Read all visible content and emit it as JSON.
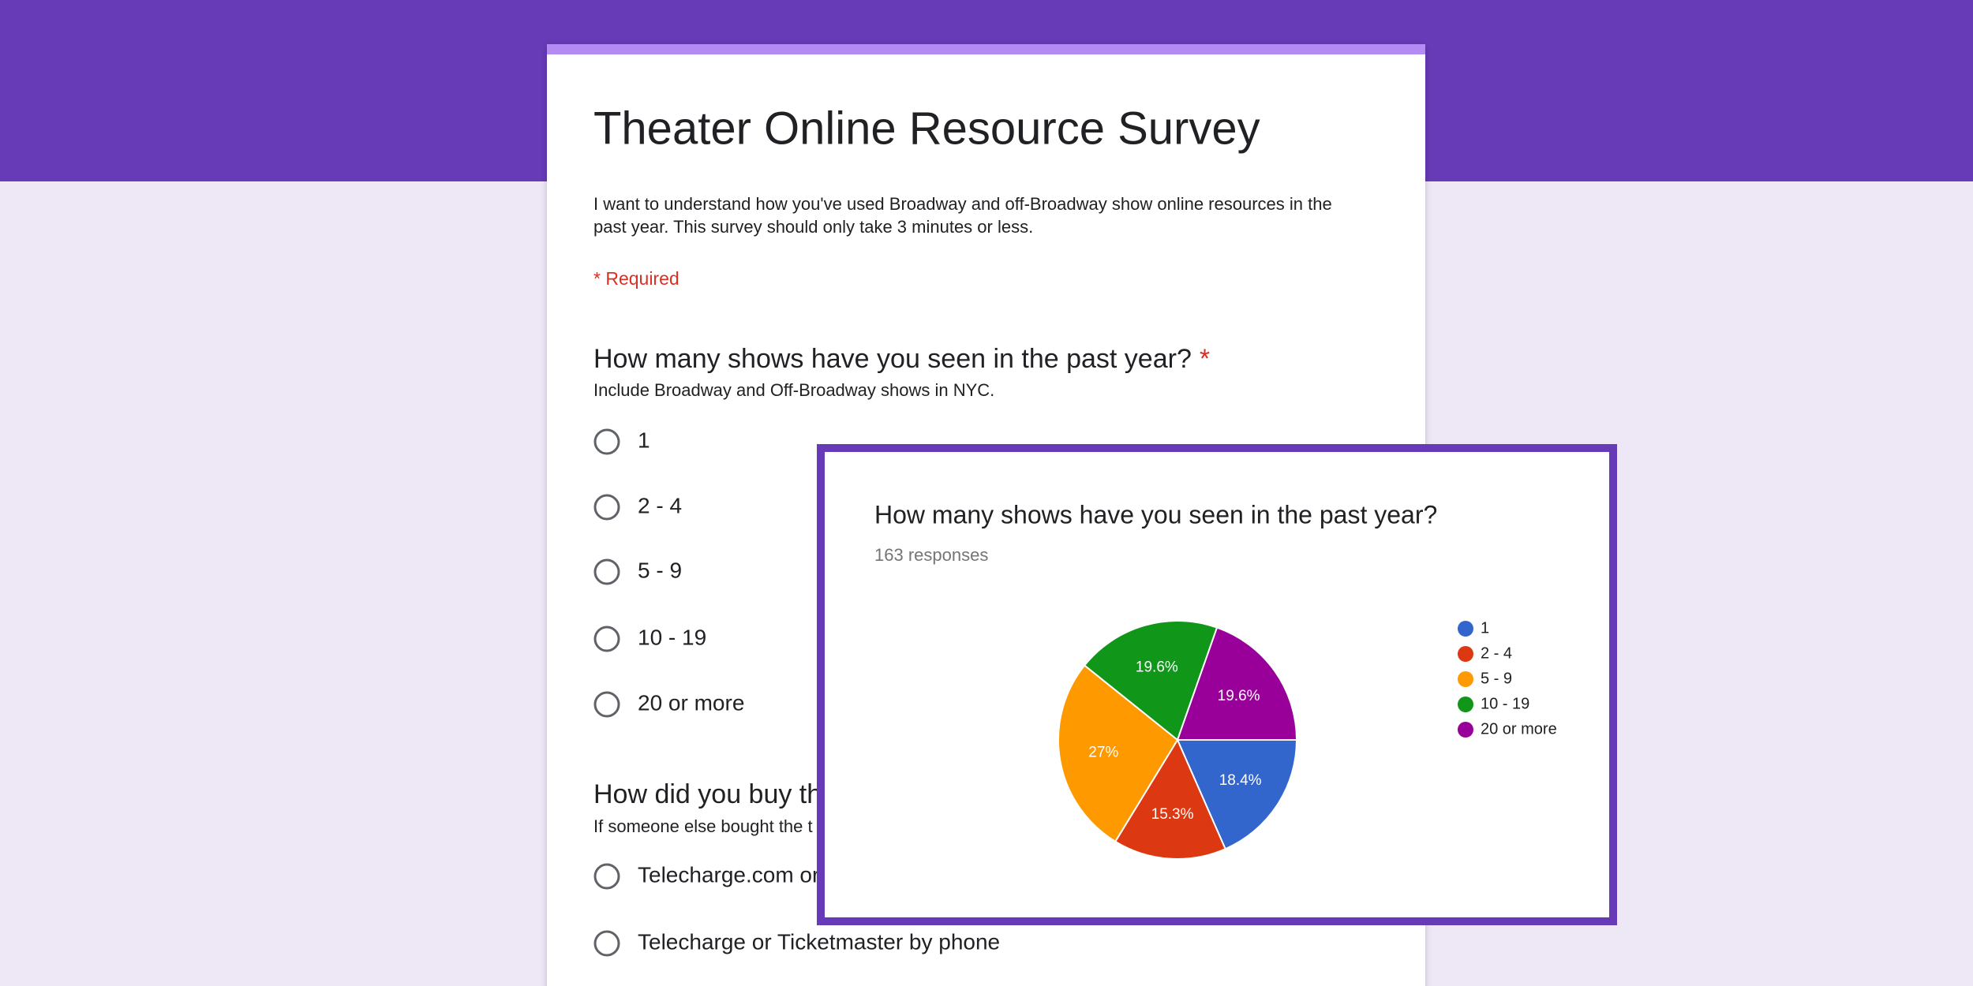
{
  "form": {
    "title": "Theater Online Resource Survey",
    "description": [
      "I want to understand how you've used Broadway and off-Broadway show online resources in the",
      "past year. This survey should only take 3 minutes or less."
    ],
    "required_note": "* Required",
    "questions": [
      {
        "title": "How many shows have you seen in the past year?",
        "required_mark": "*",
        "help": "Include Broadway and Off-Broadway shows in NYC.",
        "options": [
          "1",
          "2 - 4",
          "5 - 9",
          "10 - 19",
          "20 or more"
        ]
      },
      {
        "title": "How did you buy th",
        "help": "If someone else bought the t",
        "options": [
          "Telecharge.com or",
          "Telecharge or Ticketmaster by phone"
        ]
      }
    ]
  },
  "chart_data": {
    "type": "pie",
    "title": "How many shows have you seen in the past year?",
    "subtitle": "163 responses",
    "categories": [
      "1",
      "2 - 4",
      "5 - 9",
      "10 - 19",
      "20 or more"
    ],
    "values": [
      18.4,
      15.3,
      27,
      19.6,
      19.6
    ],
    "value_labels": [
      "18.4%",
      "15.3%",
      "27%",
      "19.6%",
      "19.6%"
    ],
    "colors": [
      "#3366cc",
      "#dc3912",
      "#ff9900",
      "#109618",
      "#990099"
    ],
    "legend": "right"
  }
}
